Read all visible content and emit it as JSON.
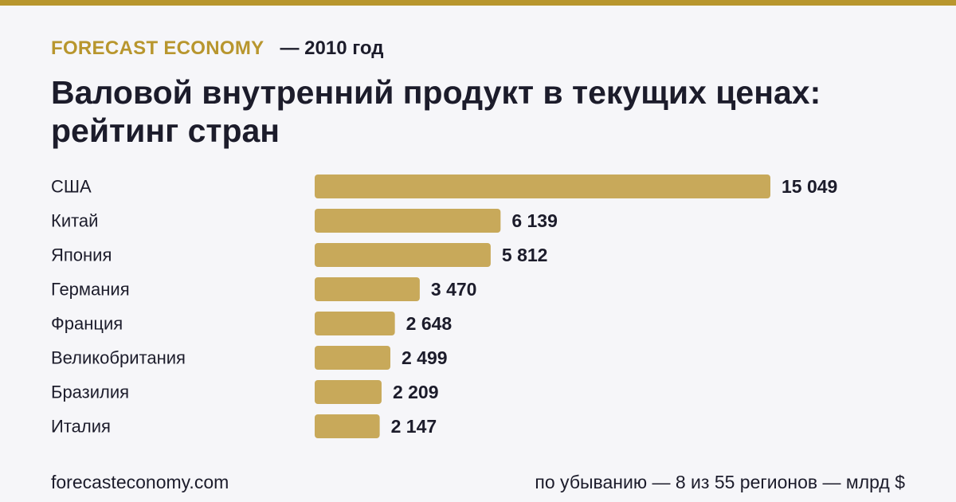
{
  "header": {
    "brand": "FORECAST ECONOMY",
    "year_label": "— 2010 год",
    "title": "Валовой внутренний продукт в текущих ценах: рейтинг стран"
  },
  "footer": {
    "site": "forecasteconomy.com",
    "note": "по убыванию — 8 из 55 регионов — млрд $"
  },
  "colors": {
    "accent": "#b8962e",
    "bar": "#c8a95a",
    "text": "#1c1c2b",
    "background": "#f6f6f9"
  },
  "chart_data": {
    "type": "bar",
    "orientation": "horizontal",
    "categories": [
      "США",
      "Китай",
      "Япония",
      "Германия",
      "Франция",
      "Великобритания",
      "Бразилия",
      "Италия"
    ],
    "values": [
      15049,
      6139,
      5812,
      3470,
      2648,
      2499,
      2209,
      2147
    ],
    "value_labels": [
      "15 049",
      "6 139",
      "5 812",
      "3 470",
      "2 648",
      "2 499",
      "2 209",
      "2 147"
    ],
    "xlim": [
      0,
      15049
    ],
    "grid": false,
    "legend": "none"
  }
}
